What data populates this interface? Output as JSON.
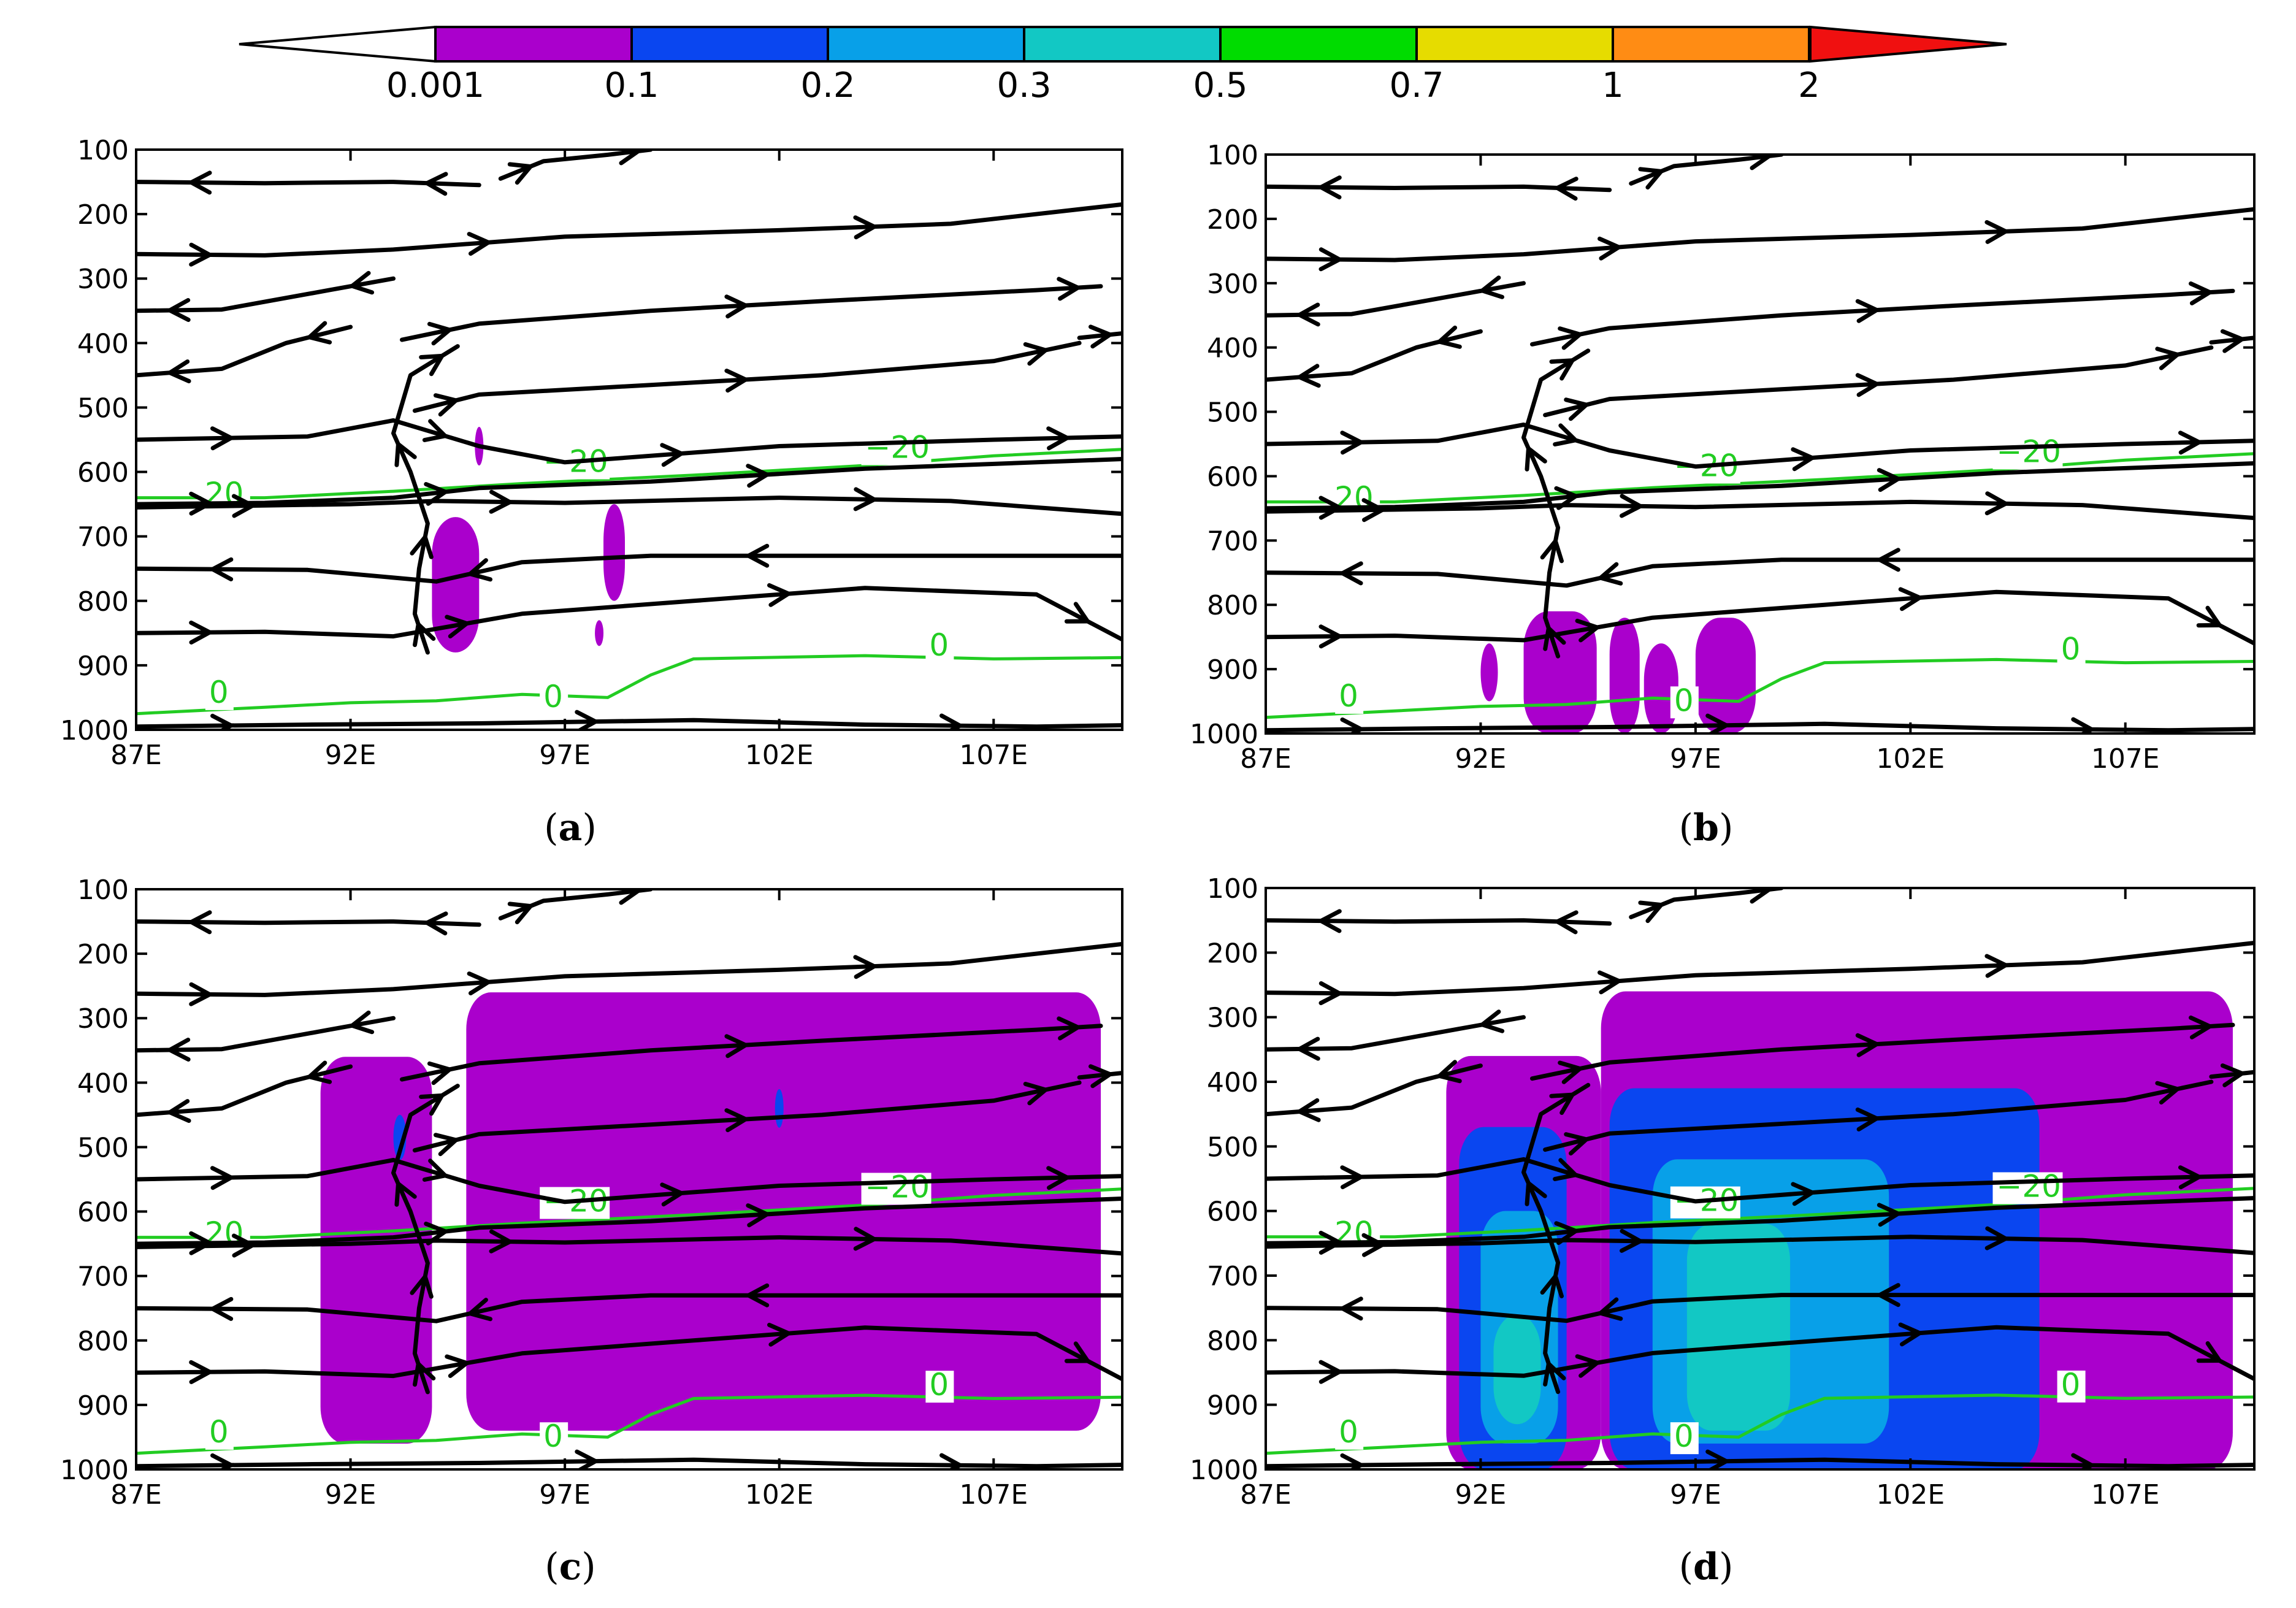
{
  "figure": {
    "colorbar": {
      "levels": [
        "0.001",
        "0.1",
        "0.2",
        "0.3",
        "0.5",
        "0.7",
        "1",
        "2"
      ],
      "colors": [
        "#aa00cc",
        "#0a46f0",
        "#08a0e8",
        "#12c8c4",
        "#00dc00",
        "#e6dc00",
        "#ff8c14",
        "#f01010"
      ]
    },
    "contour_color": "#22cc22",
    "streamline_color": "#000000",
    "zero_isotherm_label": "0",
    "minus20_isotherm_label": "−20",
    "minus20_short_label": "20"
  },
  "chart_data": [
    {
      "type": "heatmap",
      "panel": "a",
      "label_letter": "a",
      "label_open": "(",
      "label_close": ")",
      "x_ticks": [
        "87E",
        "92E",
        "97E",
        "102E",
        "107E"
      ],
      "y_ticks": [
        "100",
        "200",
        "300",
        "400",
        "500",
        "600",
        "700",
        "800",
        "900",
        "1000"
      ],
      "xlim": [
        87,
        110
      ],
      "ylim": [
        1000,
        100
      ],
      "shading": [
        {
          "lon": [
            93.9,
            95.0
          ],
          "p": [
            670,
            880
          ],
          "level": "0.001-0.1"
        },
        {
          "lon": [
            94.9,
            95.1
          ],
          "p": [
            530,
            590
          ],
          "level": "0.001-0.1"
        },
        {
          "lon": [
            97.9,
            98.4
          ],
          "p": [
            650,
            800
          ],
          "level": "0.001-0.1"
        },
        {
          "lon": [
            97.7,
            97.9
          ],
          "p": [
            830,
            870
          ],
          "level": "0.001-0.1"
        }
      ]
    },
    {
      "type": "heatmap",
      "panel": "b",
      "label_letter": "b",
      "label_open": "(",
      "label_close": ")",
      "x_ticks": [
        "87E",
        "92E",
        "97E",
        "102E",
        "107E"
      ],
      "y_ticks": [
        "100",
        "200",
        "300",
        "400",
        "500",
        "600",
        "700",
        "800",
        "900",
        "1000"
      ],
      "xlim": [
        87,
        110
      ],
      "ylim": [
        1000,
        100
      ],
      "shading": [
        {
          "lon": [
            92.0,
            92.4
          ],
          "p": [
            860,
            950
          ],
          "level": "0.001-0.1"
        },
        {
          "lon": [
            93.0,
            94.7
          ],
          "p": [
            810,
            1000
          ],
          "level": "0.001-0.1"
        },
        {
          "lon": [
            95.0,
            95.7
          ],
          "p": [
            820,
            1000
          ],
          "level": "0.001-0.1"
        },
        {
          "lon": [
            95.8,
            96.6
          ],
          "p": [
            860,
            1000
          ],
          "level": "0.001-0.1"
        },
        {
          "lon": [
            97.0,
            98.4
          ],
          "p": [
            820,
            1000
          ],
          "level": "0.001-0.1"
        }
      ]
    },
    {
      "type": "heatmap",
      "panel": "c",
      "label_letter": "c",
      "label_open": "(",
      "label_close": ")",
      "x_ticks": [
        "87E",
        "92E",
        "97E",
        "102E",
        "107E"
      ],
      "y_ticks": [
        "100",
        "200",
        "300",
        "400",
        "500",
        "600",
        "700",
        "800",
        "900",
        "1000"
      ],
      "xlim": [
        87,
        110
      ],
      "ylim": [
        1000,
        100
      ],
      "shading": [
        {
          "lon": [
            91.3,
            93.9
          ],
          "p": [
            360,
            960
          ],
          "level": "0.001-0.1"
        },
        {
          "lon": [
            94.7,
            109.5
          ],
          "p": [
            260,
            940
          ],
          "level": "0.001-0.1"
        },
        {
          "lon": [
            93.0,
            93.3
          ],
          "p": [
            450,
            520
          ],
          "level": "0.1-0.2"
        },
        {
          "lon": [
            101.9,
            102.1
          ],
          "p": [
            410,
            470
          ],
          "level": "0.1-0.2"
        }
      ]
    },
    {
      "type": "heatmap",
      "panel": "d",
      "label_letter": "d",
      "label_open": "(",
      "label_close": ")",
      "x_ticks": [
        "87E",
        "92E",
        "97E",
        "102E",
        "107E"
      ],
      "y_ticks": [
        "100",
        "200",
        "300",
        "400",
        "500",
        "600",
        "700",
        "800",
        "900",
        "1000"
      ],
      "xlim": [
        87,
        110
      ],
      "ylim": [
        1000,
        100
      ],
      "shading": [
        {
          "lon": [
            91.2,
            94.8
          ],
          "p": [
            360,
            1000
          ],
          "level": "0.001-0.1"
        },
        {
          "lon": [
            94.8,
            109.5
          ],
          "p": [
            260,
            1000
          ],
          "level": "0.001-0.1"
        },
        {
          "lon": [
            91.5,
            94.0
          ],
          "p": [
            470,
            1000
          ],
          "level": "0.1-0.2"
        },
        {
          "lon": [
            95.0,
            105.0
          ],
          "p": [
            410,
            1000
          ],
          "level": "0.1-0.2"
        },
        {
          "lon": [
            92.0,
            93.8
          ],
          "p": [
            600,
            960
          ],
          "level": "0.2-0.3"
        },
        {
          "lon": [
            96.0,
            101.5
          ],
          "p": [
            520,
            960
          ],
          "level": "0.2-0.3"
        },
        {
          "lon": [
            96.8,
            99.2
          ],
          "p": [
            620,
            940
          ],
          "level": "0.3-0.5"
        },
        {
          "lon": [
            92.3,
            93.4
          ],
          "p": [
            760,
            930
          ],
          "level": "0.3-0.5"
        }
      ]
    }
  ]
}
